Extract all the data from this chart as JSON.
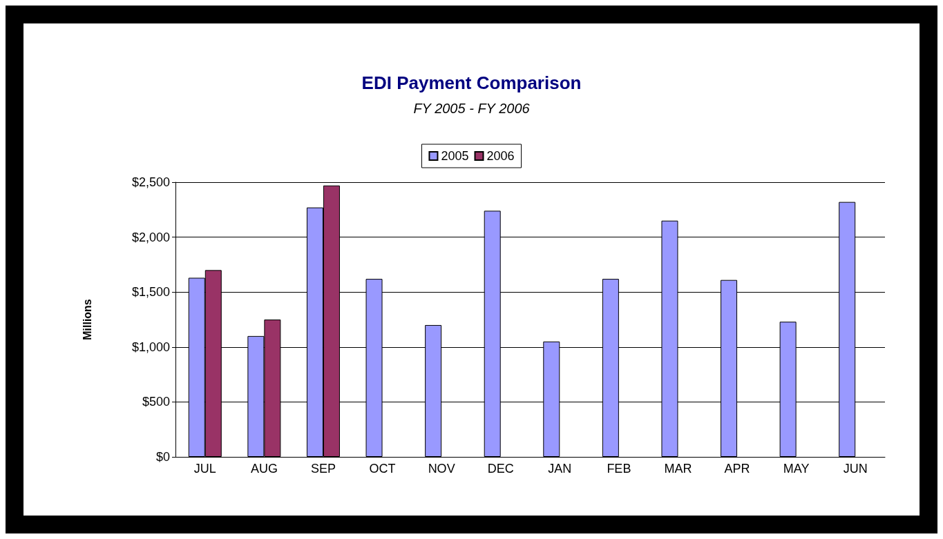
{
  "chart_data": {
    "type": "bar",
    "title": "EDI Payment Comparison",
    "subtitle": "FY 2005 - FY 2006",
    "ylabel": "Millions",
    "categories": [
      "JUL",
      "AUG",
      "SEP",
      "OCT",
      "NOV",
      "DEC",
      "JAN",
      "FEB",
      "MAR",
      "APR",
      "MAY",
      "JUN"
    ],
    "series": [
      {
        "name": "2005",
        "color": "#9999ff",
        "values": [
          1630,
          1100,
          2270,
          1620,
          1200,
          2240,
          1050,
          1620,
          2150,
          1610,
          1230,
          2320
        ]
      },
      {
        "name": "2006",
        "color": "#993366",
        "values": [
          1700,
          1250,
          2470,
          null,
          null,
          null,
          null,
          null,
          null,
          null,
          null,
          null
        ]
      }
    ],
    "ylim": [
      0,
      2500
    ],
    "yticks": [
      {
        "value": 0,
        "label": "$0"
      },
      {
        "value": 500,
        "label": "$500"
      },
      {
        "value": 1000,
        "label": "$1,000"
      },
      {
        "value": 1500,
        "label": "$1,500"
      },
      {
        "value": 2000,
        "label": "$2,000"
      },
      {
        "value": 2500,
        "label": "$2,500"
      }
    ],
    "grid": "y",
    "legend": "top"
  }
}
